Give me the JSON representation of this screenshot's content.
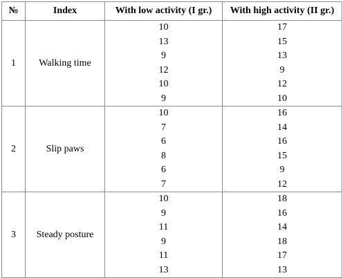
{
  "table": {
    "headers": [
      "№",
      "Index",
      "With low activity (I gr.)",
      "With high activity (II gr.)"
    ],
    "rows": [
      {
        "num": "1",
        "index": "Walking time",
        "low": [
          "10",
          "13",
          "9",
          "12",
          "10",
          "9"
        ],
        "high": [
          "17",
          "15",
          "13",
          "9",
          "12",
          "10"
        ]
      },
      {
        "num": "2",
        "index": "Slip paws",
        "low": [
          "10",
          "7",
          "6",
          "8",
          "6",
          "7"
        ],
        "high": [
          "16",
          "14",
          "16",
          "15",
          "9",
          "12"
        ]
      },
      {
        "num": "3",
        "index": "Steady posture",
        "low": [
          "10",
          "9",
          "11",
          "9",
          "11",
          "13"
        ],
        "high": [
          "18",
          "16",
          "14",
          "18",
          "17",
          "13"
        ]
      }
    ]
  }
}
